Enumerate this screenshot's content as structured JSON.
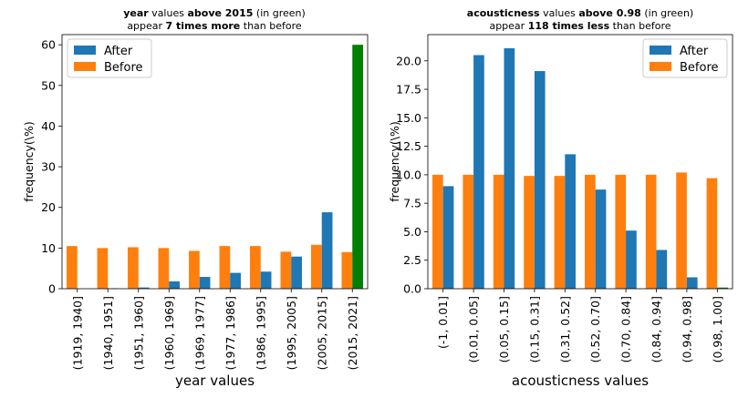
{
  "chart_data": [
    {
      "type": "bar",
      "title_parts": [
        {
          "text": "year",
          "bold": true
        },
        {
          "text": " values ",
          "bold": false
        },
        {
          "text": "above 2015",
          "bold": true
        },
        {
          "text": " (in green)",
          "bold": false
        }
      ],
      "subtitle_parts": [
        {
          "text": "appear ",
          "bold": false
        },
        {
          "text": "7 times more",
          "bold": true
        },
        {
          "text": " than before",
          "bold": false
        }
      ],
      "xlabel": "year values",
      "ylabel": "frequency(\\%)",
      "ylim": [
        0,
        62.5
      ],
      "yticks": [
        0,
        10,
        20,
        30,
        40,
        50,
        60
      ],
      "ytick_labels": [
        "0",
        "10",
        "20",
        "30",
        "40",
        "50",
        "60"
      ],
      "categories": [
        "(1919, 1940]",
        "(1940, 1951]",
        "(1951, 1960]",
        "(1960, 1969]",
        "(1969, 1977]",
        "(1977, 1986]",
        "(1986, 1995]",
        "(1995, 2005]",
        "(2005, 2015]",
        "(2015, 2021]"
      ],
      "series": [
        {
          "name": "Before",
          "color": "#ff7f0e",
          "values": [
            10.5,
            10.0,
            10.2,
            10.0,
            9.3,
            10.5,
            10.5,
            9.1,
            10.8,
            9.0
          ]
        },
        {
          "name": "After",
          "color": "#1f77b4",
          "values": [
            0.0,
            0.1,
            0.3,
            1.8,
            2.9,
            3.9,
            4.2,
            7.9,
            18.8,
            60.0
          ]
        }
      ],
      "highlight": {
        "category_index": 9,
        "series": "After",
        "color": "#008000"
      },
      "legend": {
        "placement": "top-left",
        "order": [
          "After",
          "Before"
        ]
      },
      "grid": false
    },
    {
      "type": "bar",
      "title_parts": [
        {
          "text": "acousticness",
          "bold": true
        },
        {
          "text": " values ",
          "bold": false
        },
        {
          "text": "above 0.98",
          "bold": true
        },
        {
          "text": " (in green)",
          "bold": false
        }
      ],
      "subtitle_parts": [
        {
          "text": "appear ",
          "bold": false
        },
        {
          "text": "118 times less",
          "bold": true
        },
        {
          "text": " than before",
          "bold": false
        }
      ],
      "xlabel": "acousticness values",
      "ylabel": "frequency(\\%)",
      "ylim": [
        0,
        22.3
      ],
      "yticks": [
        0,
        2.5,
        5,
        7.5,
        10,
        12.5,
        15,
        17.5,
        20
      ],
      "ytick_labels": [
        "0.0",
        "2.5",
        "5.0",
        "7.5",
        "10.0",
        "12.5",
        "15.0",
        "17.5",
        "20.0"
      ],
      "categories": [
        "(-1, 0.01]",
        "(0.01, 0.05]",
        "(0.05, 0.15]",
        "(0.15, 0.31]",
        "(0.31, 0.52]",
        "(0.52, 0.70]",
        "(0.70, 0.84]",
        "(0.84, 0.94]",
        "(0.94, 0.98]",
        "(0.98, 1.00]"
      ],
      "series": [
        {
          "name": "Before",
          "color": "#ff7f0e",
          "values": [
            10.0,
            10.0,
            10.0,
            9.9,
            9.9,
            10.0,
            10.0,
            10.0,
            10.2,
            9.7
          ]
        },
        {
          "name": "After",
          "color": "#1f77b4",
          "values": [
            9.0,
            20.5,
            21.1,
            19.1,
            11.8,
            8.7,
            5.1,
            3.4,
            1.0,
            0.1
          ]
        }
      ],
      "highlight": {
        "category_index": 9,
        "series": "After",
        "color": "#008000"
      },
      "legend": {
        "placement": "top-right",
        "order": [
          "After",
          "Before"
        ]
      },
      "grid": false
    }
  ]
}
